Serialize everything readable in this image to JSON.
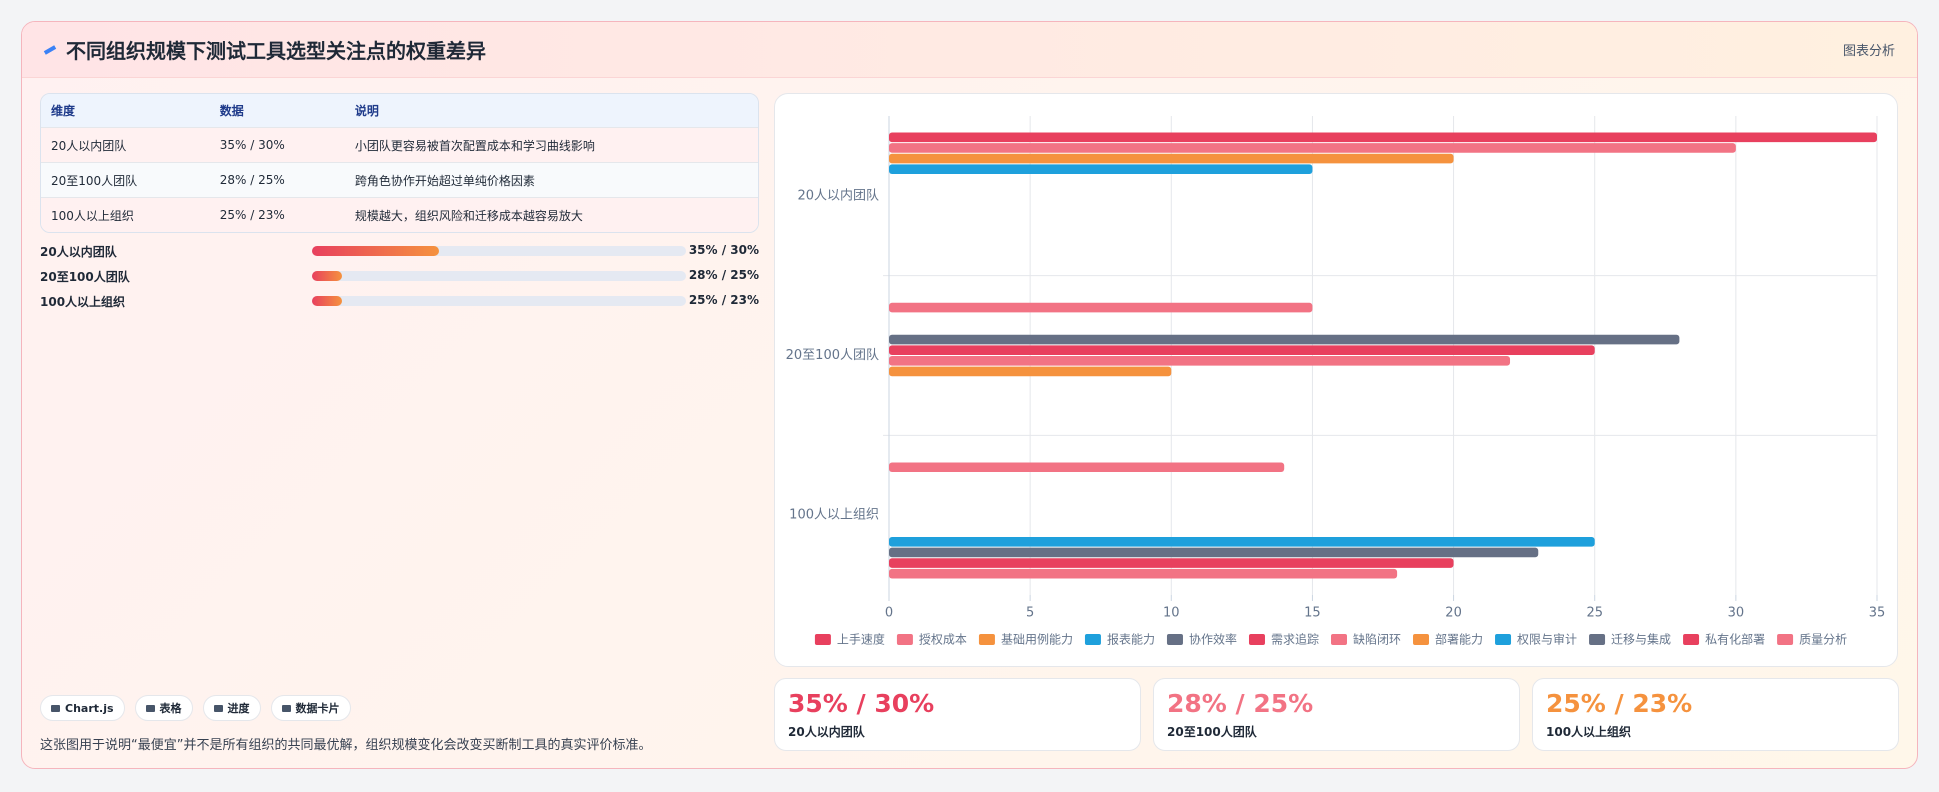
{
  "header": {
    "title": "不同组织规模下测试工具选型关注点的权重差异",
    "action": "图表分析"
  },
  "table": {
    "columns": [
      "维度",
      "数据",
      "说明"
    ],
    "rows": [
      [
        "20人以内团队",
        "35% / 30%",
        "小团队更容易被首次配置成本和学习曲线影响"
      ],
      [
        "20至100人团队",
        "28% / 25%",
        "跨角色协作开始超过单纯价格因素"
      ],
      [
        "100人以上组织",
        "25% / 23%",
        "规模越大，组织风险和迁移成本越容易放大"
      ]
    ]
  },
  "progress": [
    {
      "label": "20人以内团队",
      "value_label": "35% / 30%",
      "fill": 34
    },
    {
      "label": "20至100人团队",
      "value_label": "28% / 25%",
      "fill": 8
    },
    {
      "label": "100人以上组织",
      "value_label": "25% / 23%",
      "fill": 8
    }
  ],
  "chips": [
    "Chart.js",
    "表格",
    "进度",
    "数据卡片"
  ],
  "footer": "这张图用于说明“最便宜”并不是所有组织的共同最优解，组织规模变化会改变买断制工具的真实评价标准。",
  "chart_data": {
    "type": "hbar",
    "categories": [
      "20人以内团队",
      "20至100人团队",
      "100人以上组织"
    ],
    "series": [
      {
        "name": "上手速度",
        "color": "#e8405e",
        "values": [
          35,
          null,
          null
        ]
      },
      {
        "name": "授权成本",
        "color": "#f27384",
        "values": [
          30,
          15,
          14
        ]
      },
      {
        "name": "基础用例能力",
        "color": "#f5923e",
        "values": [
          20,
          null,
          null
        ]
      },
      {
        "name": "报表能力",
        "color": "#1ea0dc",
        "values": [
          15,
          null,
          null
        ]
      },
      {
        "name": "协作效率",
        "color": "#667085",
        "values": [
          null,
          28,
          null
        ]
      },
      {
        "name": "需求追踪",
        "color": "#e8405e",
        "values": [
          null,
          25,
          null
        ]
      },
      {
        "name": "缺陷闭环",
        "color": "#f27384",
        "values": [
          null,
          22,
          null
        ]
      },
      {
        "name": "部署能力",
        "color": "#f5923e",
        "values": [
          null,
          10,
          null
        ]
      },
      {
        "name": "权限与审计",
        "color": "#1ea0dc",
        "values": [
          null,
          null,
          25
        ]
      },
      {
        "name": "迁移与集成",
        "color": "#667085",
        "values": [
          null,
          null,
          23
        ]
      },
      {
        "name": "私有化部署",
        "color": "#e8405e",
        "values": [
          null,
          null,
          20
        ]
      },
      {
        "name": "质量分析",
        "color": "#f27384",
        "values": [
          null,
          null,
          18
        ]
      }
    ],
    "xlim": [
      0,
      35
    ],
    "xticks": [
      0,
      5,
      10,
      15,
      20,
      25,
      30,
      35
    ],
    "grid": true
  },
  "stats": [
    {
      "value": "35% / 30%",
      "label": "20人以内团队",
      "color": "#e8405e"
    },
    {
      "value": "28% / 25%",
      "label": "20至100人团队",
      "color": "#f27384"
    },
    {
      "value": "25% / 23%",
      "label": "100人以上组织",
      "color": "#f5923e"
    }
  ]
}
